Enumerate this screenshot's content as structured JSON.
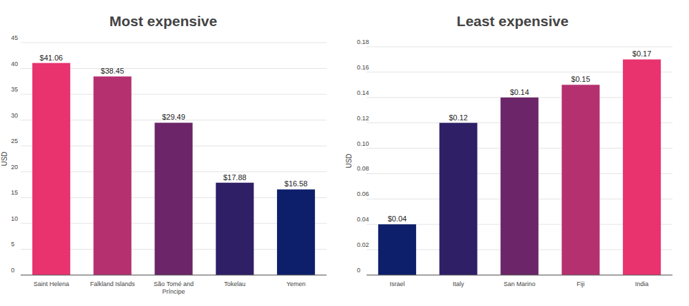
{
  "chart_data": [
    {
      "type": "bar",
      "title": "Most expensive",
      "ylabel": "USD",
      "categories": [
        "Saint Helena",
        "Falkland Islands",
        "São Tomé and Príncipe",
        "Tokelau",
        "Yemen"
      ],
      "values": [
        41.06,
        38.45,
        29.49,
        17.88,
        16.58
      ],
      "value_labels": [
        "$41.06",
        "$38.45",
        "$29.49",
        "$17.88",
        "$16.58"
      ],
      "colors": [
        "#e8336f",
        "#b5306f",
        "#6c2568",
        "#2f1f66",
        "#0d1f6b"
      ],
      "ylim": [
        0,
        45
      ],
      "yticks": [
        0,
        5,
        10,
        15,
        20,
        25,
        30,
        35,
        40,
        45
      ],
      "grid": true,
      "data_labels": true
    },
    {
      "type": "bar",
      "title": "Least expensive",
      "ylabel": "USD",
      "categories": [
        "Israel",
        "Italy",
        "San Marino",
        "Fiji",
        "India"
      ],
      "values": [
        0.04,
        0.12,
        0.14,
        0.15,
        0.17
      ],
      "value_labels": [
        "$0.04",
        "$0.12",
        "$0.14",
        "$0.15",
        "$0.17"
      ],
      "colors": [
        "#0d1f6b",
        "#2f1f66",
        "#6c2568",
        "#b5306f",
        "#e8336f"
      ],
      "ylim": [
        0,
        0.18
      ],
      "yticks": [
        0,
        0.02,
        0.04,
        0.06,
        0.08,
        {
          "value": 0.1,
          "label": "0.10"
        },
        0.12,
        0.14,
        0.16,
        0.18
      ],
      "grid": true,
      "data_labels": true
    }
  ]
}
